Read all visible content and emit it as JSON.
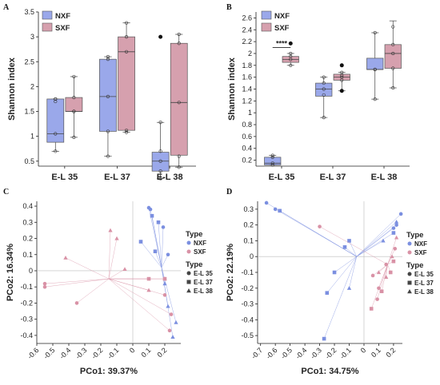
{
  "colors": {
    "NXF": "#7b8fe0",
    "SXF": "#d992a6",
    "box_NXF": "#9aa8ea",
    "box_SXF": "#d6a0ae"
  },
  "chart_data": [
    {
      "panel": "A",
      "type": "box",
      "ylabel": "Shannon index",
      "xlabel": "",
      "categories": [
        "E-L 35",
        "E-L 37",
        "E-L 38"
      ],
      "ylim": [
        0.4,
        3.5
      ],
      "yticks": [
        "0.5",
        "1",
        "1.5",
        "2",
        "2.5",
        "3",
        "3.5"
      ],
      "legend": [
        "NXF",
        "SXF"
      ],
      "series": [
        {
          "name": "NXF",
          "boxes": [
            {
              "min": 0.7,
              "q1": 0.88,
              "median": 1.05,
              "q3": 1.75,
              "max": 1.75,
              "outliers": [],
              "points": [
                0.7,
                1.05,
                1.75,
                1.75,
                1.7
              ]
            },
            {
              "min": 0.6,
              "q1": 1.1,
              "median": 1.8,
              "q3": 2.55,
              "max": 2.6,
              "outliers": [],
              "points": [
                0.6,
                1.1,
                1.8,
                2.55,
                2.6
              ]
            },
            {
              "min": 0.15,
              "q1": 0.3,
              "median": 0.5,
              "q3": 0.68,
              "max": 1.28,
              "outliers": [
                3.0
              ],
              "points": [
                0.15,
                0.3,
                0.5,
                0.7,
                1.28
              ]
            }
          ]
        },
        {
          "name": "SXF",
          "boxes": [
            {
              "min": 0.98,
              "q1": 1.5,
              "median": 1.5,
              "q3": 1.78,
              "max": 2.2,
              "outliers": [],
              "points": [
                0.98,
                1.5,
                1.5,
                1.78,
                2.2
              ]
            },
            {
              "min": 1.08,
              "q1": 1.12,
              "median": 2.7,
              "q3": 3.0,
              "max": 3.28,
              "outliers": [],
              "points": [
                1.08,
                1.12,
                2.7,
                3.0,
                3.28
              ]
            },
            {
              "min": 0.38,
              "q1": 0.62,
              "median": 1.68,
              "q3": 2.87,
              "max": 3.05,
              "outliers": [],
              "points": [
                0.38,
                0.6,
                1.68,
                2.87,
                3.05
              ]
            }
          ]
        }
      ]
    },
    {
      "panel": "B",
      "type": "box",
      "ylabel": "Shannon index",
      "xlabel": "",
      "categories": [
        "E-L 35",
        "E-L 37",
        "E-L 38"
      ],
      "ylim": [
        0.1,
        2.7
      ],
      "yticks": [
        "0.2",
        "0.4",
        "0.6",
        "0.8",
        "1",
        "1.2",
        "1.4",
        "1.6",
        "1.8",
        "2",
        "2.2",
        "2.4",
        "2.6"
      ],
      "legend": [
        "NXF",
        "SXF"
      ],
      "significance": "****",
      "series": [
        {
          "name": "NXF",
          "boxes": [
            {
              "min": 0.12,
              "q1": 0.12,
              "median": 0.15,
              "q3": 0.25,
              "max": 0.28,
              "outliers": [],
              "points": [
                0.12,
                0.15,
                0.25,
                0.28
              ]
            },
            {
              "min": 0.92,
              "q1": 1.28,
              "median": 1.4,
              "q3": 1.5,
              "max": 1.6,
              "outliers": [],
              "points": [
                0.92,
                1.3,
                1.4,
                1.5,
                1.6
              ]
            },
            {
              "min": 1.23,
              "q1": 1.73,
              "median": 1.73,
              "q3": 1.92,
              "max": 2.35,
              "outliers": [],
              "points": [
                1.23,
                1.73,
                1.73,
                2.35
              ]
            }
          ]
        },
        {
          "name": "SXF",
          "boxes": [
            {
              "min": 1.8,
              "q1": 1.85,
              "median": 1.9,
              "q3": 1.95,
              "max": 2.0,
              "outliers": [
                2.17
              ],
              "points": [
                1.8,
                1.9,
                1.95,
                2.0
              ]
            },
            {
              "min": 1.37,
              "q1": 1.55,
              "median": 1.6,
              "q3": 1.65,
              "max": 1.68,
              "outliers": [
                1.8,
                1.37
              ],
              "points": [
                1.55,
                1.6,
                1.63,
                1.68
              ]
            },
            {
              "min": 1.42,
              "q1": 1.75,
              "median": 2.0,
              "q3": 2.15,
              "max": 2.55,
              "outliers": [],
              "points": [
                1.42,
                1.75,
                2.0,
                2.15,
                2.45
              ]
            }
          ]
        }
      ]
    },
    {
      "panel": "C",
      "type": "scatter",
      "xlabel": "PCo1: 39.37%",
      "ylabel": "PCo2: 16.34%",
      "xlim": [
        -0.6,
        0.3
      ],
      "ylim": [
        -0.45,
        0.43
      ],
      "xticks": [
        "-0.6",
        "-0.5",
        "-0.4",
        "-0.3",
        "-0.2",
        "-0.1",
        "0",
        "0.1",
        "0.2"
      ],
      "yticks": [
        "-0.4",
        "-0.3",
        "-0.2",
        "-0.1",
        "0",
        "0.1",
        "0.2",
        "0.3",
        "0.4"
      ],
      "legend": {
        "type_title": "Type",
        "types": [
          "NXF",
          "SXF"
        ],
        "stage_title": "Type",
        "stages": [
          "E-L 35",
          "E-L 37",
          "E-L 38"
        ]
      },
      "centroids": {
        "NXF": [
          0.18,
          0.02
        ],
        "SXF": [
          -0.15,
          -0.05
        ]
      },
      "series": [
        {
          "name": "NXF",
          "points": [
            {
              "x": 0.1,
              "y": 0.39,
              "s": "E-L 35"
            },
            {
              "x": 0.11,
              "y": 0.38,
              "s": "E-L 35"
            },
            {
              "x": 0.19,
              "y": 0.27,
              "s": "E-L 35"
            },
            {
              "x": 0.22,
              "y": 0.1,
              "s": "E-L 35"
            },
            {
              "x": 0.12,
              "y": 0.34,
              "s": "E-L 37"
            },
            {
              "x": 0.16,
              "y": 0.3,
              "s": "E-L 37"
            },
            {
              "x": 0.05,
              "y": 0.18,
              "s": "E-L 37"
            },
            {
              "x": 0.14,
              "y": 0.12,
              "s": "E-L 37"
            },
            {
              "x": 0.2,
              "y": -0.08,
              "s": "E-L 38"
            },
            {
              "x": 0.27,
              "y": -0.32,
              "s": "E-L 38"
            },
            {
              "x": 0.25,
              "y": -0.41,
              "s": "E-L 38"
            },
            {
              "x": 0.22,
              "y": -0.22,
              "s": "E-L 38"
            }
          ]
        },
        {
          "name": "SXF",
          "points": [
            {
              "x": -0.55,
              "y": -0.08,
              "s": "E-L 35"
            },
            {
              "x": -0.55,
              "y": -0.1,
              "s": "E-L 35"
            },
            {
              "x": -0.35,
              "y": -0.2,
              "s": "E-L 35"
            },
            {
              "x": 0.24,
              "y": -0.27,
              "s": "E-L 35"
            },
            {
              "x": 0.23,
              "y": -0.37,
              "s": "E-L 35"
            },
            {
              "x": 0.2,
              "y": -0.15,
              "s": "E-L 35"
            },
            {
              "x": 0.1,
              "y": -0.05,
              "s": "E-L 37"
            },
            {
              "x": 0.2,
              "y": -0.05,
              "s": "E-L 37"
            },
            {
              "x": -0.42,
              "y": 0.08,
              "s": "E-L 38"
            },
            {
              "x": -0.14,
              "y": 0.25,
              "s": "E-L 38"
            },
            {
              "x": -0.1,
              "y": 0.2,
              "s": "E-L 38"
            },
            {
              "x": -0.05,
              "y": 0.01,
              "s": "E-L 38"
            },
            {
              "x": 0.1,
              "y": -0.12,
              "s": "E-L 38"
            },
            {
              "x": 0.2,
              "y": -0.05,
              "s": "E-L 38"
            }
          ]
        }
      ]
    },
    {
      "panel": "D",
      "type": "scatter",
      "xlabel": "PCo1: 34.75%",
      "ylabel": "PCo2: 22.19%",
      "xlim": [
        -0.72,
        0.26
      ],
      "ylim": [
        -0.55,
        0.35
      ],
      "xticks": [
        "-0.7",
        "-0.6",
        "-0.5",
        "-0.4",
        "-0.3",
        "-0.2",
        "-0.1",
        "0",
        "0.1",
        "0.2"
      ],
      "yticks": [
        "-0.5",
        "-0.4",
        "-0.3",
        "-0.2",
        "-0.1",
        "0",
        "0.1",
        "0.2",
        "0.3"
      ],
      "legend": {
        "type_title": "Type",
        "types": [
          "NXF",
          "SXF"
        ],
        "stage_title": "Type",
        "stages": [
          "E-L 35",
          "E-L 37",
          "E-L 38"
        ]
      },
      "centroids": {
        "NXF": [
          -0.05,
          0.0
        ],
        "SXF": [
          0.16,
          -0.05
        ]
      },
      "series": [
        {
          "name": "NXF",
          "points": [
            {
              "x": -0.66,
              "y": 0.34,
              "s": "E-L 35"
            },
            {
              "x": -0.6,
              "y": 0.3,
              "s": "E-L 35"
            },
            {
              "x": 0.22,
              "y": 0.2,
              "s": "E-L 35"
            },
            {
              "x": 0.25,
              "y": 0.27,
              "s": "E-L 35"
            },
            {
              "x": 0.2,
              "y": 0.18,
              "s": "E-L 35"
            },
            {
              "x": -0.57,
              "y": 0.29,
              "s": "E-L 37"
            },
            {
              "x": -0.13,
              "y": 0.06,
              "s": "E-L 37"
            },
            {
              "x": -0.27,
              "y": -0.52,
              "s": "E-L 37"
            },
            {
              "x": -0.2,
              "y": -0.1,
              "s": "E-L 37"
            },
            {
              "x": -0.25,
              "y": -0.23,
              "s": "E-L 37"
            },
            {
              "x": -0.1,
              "y": 0.1,
              "s": "E-L 37"
            },
            {
              "x": 0.2,
              "y": 0.15,
              "s": "E-L 37"
            },
            {
              "x": 0.13,
              "y": 0.1,
              "s": "E-L 38"
            },
            {
              "x": -0.1,
              "y": -0.2,
              "s": "E-L 38"
            },
            {
              "x": 0.22,
              "y": 0.22,
              "s": "E-L 38"
            }
          ]
        },
        {
          "name": "SXF",
          "points": [
            {
              "x": -0.3,
              "y": 0.19,
              "s": "E-L 35"
            },
            {
              "x": 0.06,
              "y": -0.12,
              "s": "E-L 35"
            },
            {
              "x": 0.1,
              "y": -0.2,
              "s": "E-L 35"
            },
            {
              "x": 0.09,
              "y": -0.27,
              "s": "E-L 35"
            },
            {
              "x": 0.15,
              "y": -0.05,
              "s": "E-L 35"
            },
            {
              "x": 0.21,
              "y": 0.05,
              "s": "E-L 35"
            },
            {
              "x": 0.05,
              "y": -0.33,
              "s": "E-L 37"
            },
            {
              "x": 0.12,
              "y": -0.22,
              "s": "E-L 37"
            },
            {
              "x": 0.18,
              "y": -0.1,
              "s": "E-L 37"
            },
            {
              "x": 0.2,
              "y": -0.03,
              "s": "E-L 37"
            },
            {
              "x": 0.1,
              "y": -0.1,
              "s": "E-L 38"
            },
            {
              "x": 0.15,
              "y": -0.13,
              "s": "E-L 38"
            },
            {
              "x": 0.19,
              "y": 0.0,
              "s": "E-L 38"
            },
            {
              "x": 0.22,
              "y": 0.12,
              "s": "E-L 38"
            }
          ]
        }
      ]
    }
  ]
}
